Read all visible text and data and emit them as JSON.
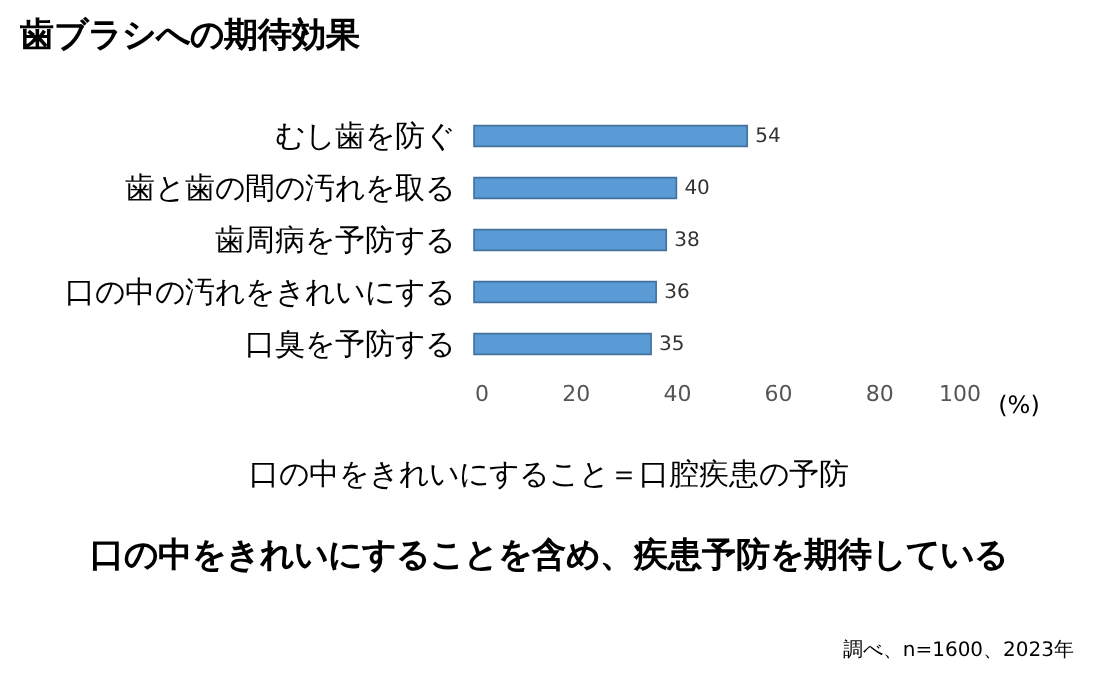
{
  "chart_data": {
    "type": "bar",
    "orientation": "horizontal",
    "title": "歯ブラシへの期待効果",
    "categories": [
      "むし歯を防ぐ",
      "歯と歯の間の汚れを取る",
      "歯周病を予防する",
      "口の中の汚れをきれいにする",
      "口臭を予防する"
    ],
    "values": [
      54,
      40,
      38,
      36,
      35
    ],
    "color": "#5b9bd5",
    "data_labels": true,
    "xlim": [
      0,
      100
    ],
    "xticks": [
      0,
      20,
      40,
      60,
      80,
      100
    ],
    "xlabel": "(%)",
    "grid": false,
    "annotations": [
      "口の中をきれいにすること＝口腔疾患の予防",
      "口の中をきれいにすることを含め、疾患予防を期待している",
      "調べ、n=1600、2023年"
    ]
  }
}
